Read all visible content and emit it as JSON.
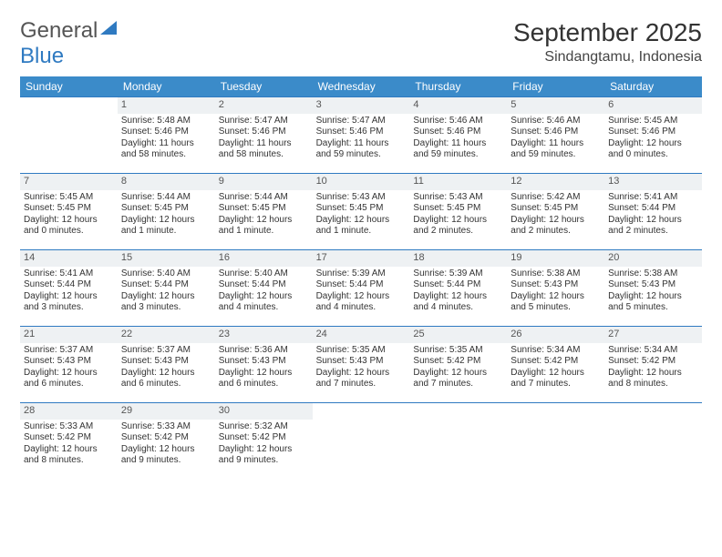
{
  "brand": {
    "part1": "General",
    "part2": "Blue"
  },
  "title": "September 2025",
  "location": "Sindangtamu, Indonesia",
  "colors": {
    "header_bg": "#3b8bc9",
    "border": "#2f7ac1",
    "daynum_bg": "#eef1f3",
    "text": "#333333",
    "brand_blue": "#2f7ac1"
  },
  "day_headers": [
    "Sunday",
    "Monday",
    "Tuesday",
    "Wednesday",
    "Thursday",
    "Friday",
    "Saturday"
  ],
  "weeks": [
    [
      {
        "n": "",
        "sr": "",
        "ss": "",
        "dl": ""
      },
      {
        "n": "1",
        "sr": "Sunrise: 5:48 AM",
        "ss": "Sunset: 5:46 PM",
        "dl": "Daylight: 11 hours and 58 minutes."
      },
      {
        "n": "2",
        "sr": "Sunrise: 5:47 AM",
        "ss": "Sunset: 5:46 PM",
        "dl": "Daylight: 11 hours and 58 minutes."
      },
      {
        "n": "3",
        "sr": "Sunrise: 5:47 AM",
        "ss": "Sunset: 5:46 PM",
        "dl": "Daylight: 11 hours and 59 minutes."
      },
      {
        "n": "4",
        "sr": "Sunrise: 5:46 AM",
        "ss": "Sunset: 5:46 PM",
        "dl": "Daylight: 11 hours and 59 minutes."
      },
      {
        "n": "5",
        "sr": "Sunrise: 5:46 AM",
        "ss": "Sunset: 5:46 PM",
        "dl": "Daylight: 11 hours and 59 minutes."
      },
      {
        "n": "6",
        "sr": "Sunrise: 5:45 AM",
        "ss": "Sunset: 5:46 PM",
        "dl": "Daylight: 12 hours and 0 minutes."
      }
    ],
    [
      {
        "n": "7",
        "sr": "Sunrise: 5:45 AM",
        "ss": "Sunset: 5:45 PM",
        "dl": "Daylight: 12 hours and 0 minutes."
      },
      {
        "n": "8",
        "sr": "Sunrise: 5:44 AM",
        "ss": "Sunset: 5:45 PM",
        "dl": "Daylight: 12 hours and 1 minute."
      },
      {
        "n": "9",
        "sr": "Sunrise: 5:44 AM",
        "ss": "Sunset: 5:45 PM",
        "dl": "Daylight: 12 hours and 1 minute."
      },
      {
        "n": "10",
        "sr": "Sunrise: 5:43 AM",
        "ss": "Sunset: 5:45 PM",
        "dl": "Daylight: 12 hours and 1 minute."
      },
      {
        "n": "11",
        "sr": "Sunrise: 5:43 AM",
        "ss": "Sunset: 5:45 PM",
        "dl": "Daylight: 12 hours and 2 minutes."
      },
      {
        "n": "12",
        "sr": "Sunrise: 5:42 AM",
        "ss": "Sunset: 5:45 PM",
        "dl": "Daylight: 12 hours and 2 minutes."
      },
      {
        "n": "13",
        "sr": "Sunrise: 5:41 AM",
        "ss": "Sunset: 5:44 PM",
        "dl": "Daylight: 12 hours and 2 minutes."
      }
    ],
    [
      {
        "n": "14",
        "sr": "Sunrise: 5:41 AM",
        "ss": "Sunset: 5:44 PM",
        "dl": "Daylight: 12 hours and 3 minutes."
      },
      {
        "n": "15",
        "sr": "Sunrise: 5:40 AM",
        "ss": "Sunset: 5:44 PM",
        "dl": "Daylight: 12 hours and 3 minutes."
      },
      {
        "n": "16",
        "sr": "Sunrise: 5:40 AM",
        "ss": "Sunset: 5:44 PM",
        "dl": "Daylight: 12 hours and 4 minutes."
      },
      {
        "n": "17",
        "sr": "Sunrise: 5:39 AM",
        "ss": "Sunset: 5:44 PM",
        "dl": "Daylight: 12 hours and 4 minutes."
      },
      {
        "n": "18",
        "sr": "Sunrise: 5:39 AM",
        "ss": "Sunset: 5:44 PM",
        "dl": "Daylight: 12 hours and 4 minutes."
      },
      {
        "n": "19",
        "sr": "Sunrise: 5:38 AM",
        "ss": "Sunset: 5:43 PM",
        "dl": "Daylight: 12 hours and 5 minutes."
      },
      {
        "n": "20",
        "sr": "Sunrise: 5:38 AM",
        "ss": "Sunset: 5:43 PM",
        "dl": "Daylight: 12 hours and 5 minutes."
      }
    ],
    [
      {
        "n": "21",
        "sr": "Sunrise: 5:37 AM",
        "ss": "Sunset: 5:43 PM",
        "dl": "Daylight: 12 hours and 6 minutes."
      },
      {
        "n": "22",
        "sr": "Sunrise: 5:37 AM",
        "ss": "Sunset: 5:43 PM",
        "dl": "Daylight: 12 hours and 6 minutes."
      },
      {
        "n": "23",
        "sr": "Sunrise: 5:36 AM",
        "ss": "Sunset: 5:43 PM",
        "dl": "Daylight: 12 hours and 6 minutes."
      },
      {
        "n": "24",
        "sr": "Sunrise: 5:35 AM",
        "ss": "Sunset: 5:43 PM",
        "dl": "Daylight: 12 hours and 7 minutes."
      },
      {
        "n": "25",
        "sr": "Sunrise: 5:35 AM",
        "ss": "Sunset: 5:42 PM",
        "dl": "Daylight: 12 hours and 7 minutes."
      },
      {
        "n": "26",
        "sr": "Sunrise: 5:34 AM",
        "ss": "Sunset: 5:42 PM",
        "dl": "Daylight: 12 hours and 7 minutes."
      },
      {
        "n": "27",
        "sr": "Sunrise: 5:34 AM",
        "ss": "Sunset: 5:42 PM",
        "dl": "Daylight: 12 hours and 8 minutes."
      }
    ],
    [
      {
        "n": "28",
        "sr": "Sunrise: 5:33 AM",
        "ss": "Sunset: 5:42 PM",
        "dl": "Daylight: 12 hours and 8 minutes."
      },
      {
        "n": "29",
        "sr": "Sunrise: 5:33 AM",
        "ss": "Sunset: 5:42 PM",
        "dl": "Daylight: 12 hours and 9 minutes."
      },
      {
        "n": "30",
        "sr": "Sunrise: 5:32 AM",
        "ss": "Sunset: 5:42 PM",
        "dl": "Daylight: 12 hours and 9 minutes."
      },
      {
        "n": "",
        "sr": "",
        "ss": "",
        "dl": ""
      },
      {
        "n": "",
        "sr": "",
        "ss": "",
        "dl": ""
      },
      {
        "n": "",
        "sr": "",
        "ss": "",
        "dl": ""
      },
      {
        "n": "",
        "sr": "",
        "ss": "",
        "dl": ""
      }
    ]
  ]
}
